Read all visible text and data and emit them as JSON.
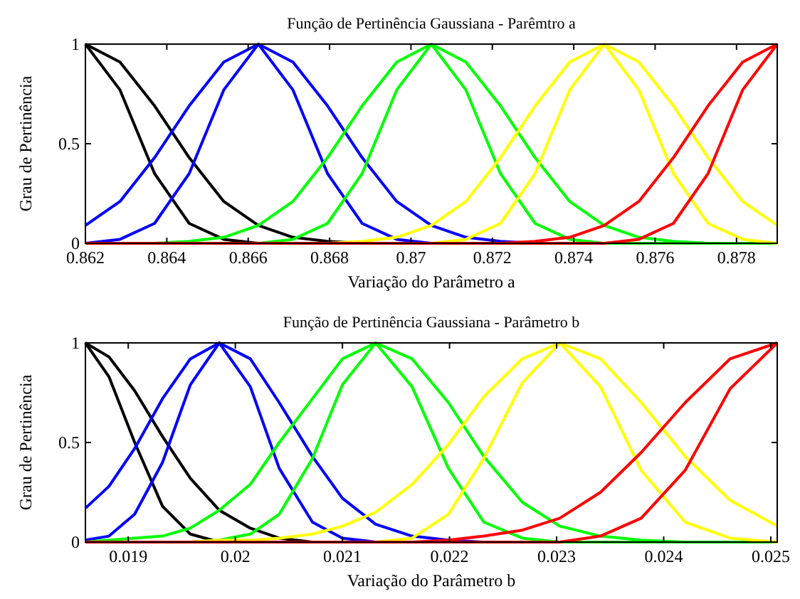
{
  "chart_data": [
    {
      "type": "line",
      "title": "Função de Pertinência Gaussiana - Parêmtro a",
      "xlabel": "Variação do Parâmetro a",
      "ylabel": "Grau de Pertinência",
      "x": [
        0.862,
        0.86285,
        0.8637,
        0.86455,
        0.8654,
        0.86625,
        0.8671,
        0.86795,
        0.8688,
        0.86965,
        0.8705,
        0.87135,
        0.8722,
        0.87305,
        0.8739,
        0.87475,
        0.8756,
        0.87645,
        0.8773,
        0.87815,
        0.879
      ],
      "xlim": [
        0.862,
        0.879
      ],
      "xticks": [
        0.862,
        0.864,
        0.866,
        0.868,
        0.87,
        0.872,
        0.874,
        0.876,
        0.878
      ],
      "ylim": [
        0,
        1
      ],
      "yticks": [
        0,
        0.5,
        1
      ],
      "grid": false,
      "marker": "none",
      "line_style": "solid",
      "series": [
        {
          "color": "#000000",
          "values": [
            1,
            0.91,
            0.69,
            0.43,
            0.21,
            0.09,
            0.03,
            0.01,
            0,
            null,
            null,
            null,
            null,
            null,
            null,
            null,
            null,
            null,
            null,
            null,
            null
          ]
        },
        {
          "color": "#000000",
          "values": [
            1,
            0.77,
            0.35,
            0.1,
            0.02,
            0,
            null,
            null,
            null,
            null,
            null,
            null,
            null,
            null,
            null,
            null,
            null,
            null,
            null,
            null,
            null
          ]
        },
        {
          "color": "#0000ff",
          "values": [
            0.09,
            0.21,
            0.43,
            0.69,
            0.91,
            1,
            0.91,
            0.69,
            0.43,
            0.21,
            0.09,
            0.03,
            0.01,
            0,
            null,
            null,
            null,
            null,
            null,
            null,
            null
          ]
        },
        {
          "color": "#0000ff",
          "values": [
            0,
            0.02,
            0.1,
            0.35,
            0.77,
            1,
            0.77,
            0.35,
            0.1,
            0.02,
            0,
            null,
            null,
            null,
            null,
            null,
            null,
            null,
            null,
            null,
            null
          ]
        },
        {
          "color": "#00ff00",
          "values": [
            null,
            null,
            0,
            0.01,
            0.03,
            0.09,
            0.21,
            0.43,
            0.69,
            0.91,
            1,
            0.91,
            0.69,
            0.43,
            0.21,
            0.09,
            0.03,
            0.01,
            0,
            null,
            null
          ]
        },
        {
          "color": "#00ff00",
          "values": [
            null,
            null,
            null,
            null,
            null,
            0,
            0.02,
            0.1,
            0.35,
            0.77,
            1,
            0.77,
            0.35,
            0.1,
            0.02,
            0,
            0,
            0,
            0,
            0,
            0
          ]
        },
        {
          "color": "#ffff00",
          "values": [
            null,
            null,
            null,
            null,
            null,
            null,
            null,
            0,
            0.01,
            0.03,
            0.09,
            0.21,
            0.43,
            0.69,
            0.91,
            1,
            0.91,
            0.69,
            0.43,
            0.21,
            0.09
          ]
        },
        {
          "color": "#ffff00",
          "values": [
            null,
            null,
            null,
            null,
            null,
            null,
            null,
            null,
            null,
            null,
            0,
            0.02,
            0.1,
            0.35,
            0.77,
            1,
            0.77,
            0.35,
            0.1,
            0.02,
            0
          ]
        },
        {
          "color": "#ff0000",
          "values": [
            null,
            null,
            null,
            null,
            null,
            null,
            null,
            null,
            null,
            null,
            null,
            null,
            0,
            0.01,
            0.03,
            0.09,
            0.21,
            0.43,
            0.69,
            0.91,
            1
          ]
        },
        {
          "color": "#ff0000",
          "values": [
            0,
            0,
            0,
            0,
            0,
            0,
            0,
            0,
            0,
            0,
            0,
            0,
            0,
            0,
            0,
            0,
            0.02,
            0.1,
            0.35,
            0.77,
            1
          ]
        }
      ]
    },
    {
      "type": "line",
      "title": "Função de Pertinência Gaussiana - Parâmetro b",
      "xlabel": "Variação do Parâmetro b",
      "ylabel": "Grau de Pertinência",
      "x": [
        0.0186,
        0.01882,
        0.01906,
        0.01932,
        0.01958,
        0.01985,
        0.02014,
        0.02041,
        0.02072,
        0.021,
        0.02131,
        0.02165,
        0.02199,
        0.02232,
        0.02268,
        0.02303,
        0.02341,
        0.02379,
        0.0242,
        0.02462,
        0.02506
      ],
      "xlim": [
        0.0186,
        0.02506
      ],
      "xticks": [
        0.019,
        0.02,
        0.021,
        0.022,
        0.023,
        0.024,
        0.025
      ],
      "ylim": [
        0,
        1
      ],
      "yticks": [
        0,
        0.5,
        1
      ],
      "grid": false,
      "marker": "none",
      "line_style": "solid",
      "series": [
        {
          "color": "#000000",
          "values": [
            1,
            0.93,
            0.76,
            0.53,
            0.32,
            0.16,
            0.07,
            0.02,
            0,
            null,
            null,
            null,
            null,
            null,
            null,
            null,
            null,
            null,
            null,
            null,
            null
          ]
        },
        {
          "color": "#000000",
          "values": [
            1,
            0.83,
            0.5,
            0.18,
            0.04,
            0,
            null,
            null,
            null,
            null,
            null,
            null,
            null,
            null,
            null,
            null,
            null,
            null,
            null,
            null,
            null
          ]
        },
        {
          "color": "#0000ff",
          "values": [
            0.17,
            0.28,
            0.47,
            0.72,
            0.92,
            1,
            0.92,
            0.7,
            0.43,
            0.22,
            0.09,
            0.03,
            0.01,
            0,
            null,
            null,
            null,
            null,
            null,
            null,
            null
          ]
        },
        {
          "color": "#0000ff",
          "values": [
            0.01,
            0.03,
            0.14,
            0.4,
            0.79,
            1,
            0.78,
            0.37,
            0.1,
            0.02,
            0,
            null,
            null,
            null,
            null,
            null,
            null,
            null,
            null,
            null,
            null
          ]
        },
        {
          "color": "#00ff00",
          "values": [
            0,
            0.01,
            0.02,
            0.03,
            0.07,
            0.16,
            0.29,
            0.5,
            0.72,
            0.92,
            1,
            0.92,
            0.7,
            0.43,
            0.2,
            0.08,
            0.03,
            0.01,
            0,
            null,
            null
          ]
        },
        {
          "color": "#00ff00",
          "values": [
            null,
            null,
            null,
            null,
            0,
            0.01,
            0.04,
            0.14,
            0.42,
            0.79,
            1,
            0.78,
            0.37,
            0.1,
            0.02,
            0,
            0,
            0,
            0,
            0,
            0
          ]
        },
        {
          "color": "#ffff00",
          "values": [
            null,
            null,
            null,
            null,
            0,
            0.01,
            0.01,
            0.02,
            0.04,
            0.08,
            0.15,
            0.29,
            0.49,
            0.73,
            0.92,
            1,
            0.92,
            0.7,
            0.43,
            0.21,
            0.08
          ]
        },
        {
          "color": "#ffff00",
          "values": [
            null,
            null,
            null,
            null,
            null,
            null,
            null,
            null,
            null,
            null,
            0,
            0.02,
            0.14,
            0.42,
            0.8,
            1,
            0.78,
            0.36,
            0.1,
            0.02,
            0
          ]
        },
        {
          "color": "#ff0000",
          "values": [
            null,
            null,
            null,
            null,
            null,
            null,
            null,
            null,
            null,
            null,
            null,
            0,
            0.01,
            0.03,
            0.06,
            0.12,
            0.25,
            0.45,
            0.7,
            0.92,
            1
          ]
        },
        {
          "color": "#ff0000",
          "values": [
            0,
            0,
            0,
            0,
            0,
            0,
            0,
            0,
            0,
            0,
            0,
            0,
            0,
            0,
            0,
            0,
            0.03,
            0.12,
            0.36,
            0.77,
            1
          ]
        }
      ]
    }
  ]
}
